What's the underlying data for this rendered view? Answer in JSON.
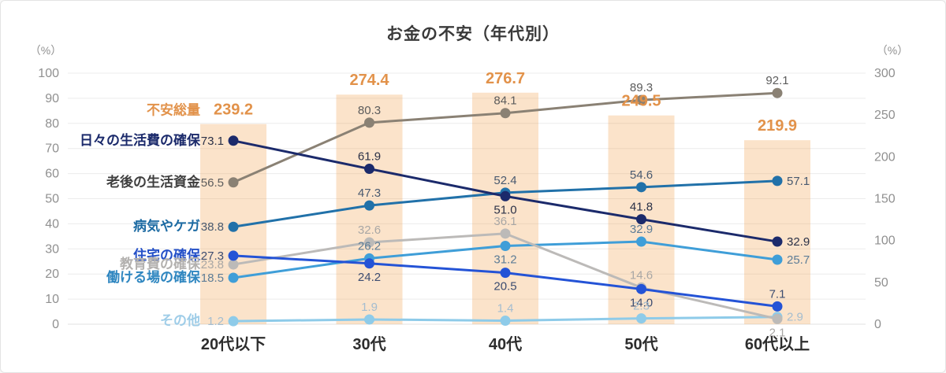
{
  "chart_data": {
    "type": "bar+line combo",
    "title": "お金の不安（年代別）",
    "categories": [
      "20代以下",
      "30代",
      "40代",
      "50代",
      "60代以上"
    ],
    "left_axis": {
      "label": "（%）",
      "min": 0,
      "max": 100,
      "step": 10,
      "tick_color": "#909090"
    },
    "right_axis": {
      "label": "（%）",
      "min": 0,
      "max": 300,
      "step": 50,
      "tick_color": "#909090"
    },
    "grid": "horizontal-on",
    "legend_position": "inline-left-of-first-point",
    "bar_series": {
      "name": "不安総量",
      "axis": "right",
      "values": [
        239.2,
        274.4,
        276.7,
        249.5,
        219.9
      ],
      "fill": "rgba(240,150,60,0.27)",
      "label_color": "#e2924a",
      "name_color": "#e2924a"
    },
    "line_series": [
      {
        "name": "日々の生活費の確保",
        "values": [
          73.1,
          61.9,
          51.0,
          41.8,
          32.9
        ],
        "color": "#1b2a6b",
        "name_color": "#1b2a6b",
        "value_color": "#2b3147",
        "placements": [
          "left",
          "above",
          "below",
          "above",
          "right"
        ]
      },
      {
        "name": "老後の生活資金",
        "values": [
          56.5,
          80.3,
          84.1,
          89.3,
          92.1
        ],
        "color": "#8a8174",
        "name_color": "#3f3f3f",
        "value_color": "#5c5c5c",
        "placements": [
          "left",
          "above",
          "above",
          "above",
          "above"
        ]
      },
      {
        "name": "病気やケガ",
        "values": [
          38.8,
          47.3,
          52.4,
          54.6,
          57.1
        ],
        "color": "#2171a9",
        "name_color": "#1d6ba3",
        "value_color": "#48596f",
        "placements": [
          "left",
          "above",
          "above",
          "above",
          "right"
        ]
      },
      {
        "name": "住宅の確保",
        "values": [
          27.3,
          24.2,
          20.5,
          14.0,
          7.1
        ],
        "color": "#2453d6",
        "name_color": "#2450c8",
        "value_color": "#3c4c70",
        "placements": [
          "left",
          "below",
          "below",
          "below",
          "above"
        ]
      },
      {
        "name": "教育費の確保",
        "values": [
          23.8,
          32.6,
          36.1,
          14.6,
          2.1
        ],
        "color": "#bcbab8",
        "name_color": "#b3b1af",
        "value_color": "#a9a7a5",
        "placements": [
          "left",
          "above",
          "above",
          "above",
          "below"
        ]
      },
      {
        "name": "働ける場の確保",
        "values": [
          18.5,
          26.2,
          31.2,
          32.9,
          25.7
        ],
        "color": "#3f9ed8",
        "name_color": "#2e86c0",
        "value_color": "#5d7c96",
        "placements": [
          "left",
          "above",
          "below",
          "above",
          "right"
        ]
      },
      {
        "name": "その他",
        "values": [
          1.2,
          1.9,
          1.4,
          2.3,
          2.9
        ],
        "color": "#8ecbe9",
        "name_color": "#9fcde8",
        "value_color": "#a4bdd0",
        "placements": [
          "left",
          "above",
          "above",
          "above",
          "right"
        ]
      }
    ],
    "style": {
      "grid_color": "#ececec",
      "axis_line_color": "#e0e0e0",
      "category_color": "#2d2d2d",
      "title_color": "#3a3a3a"
    }
  }
}
